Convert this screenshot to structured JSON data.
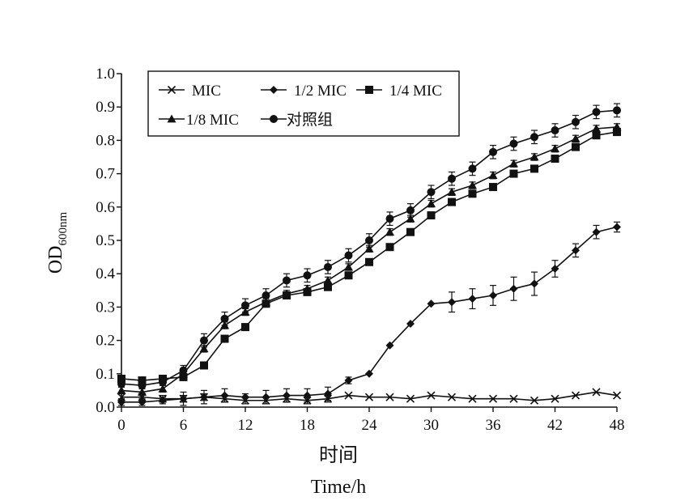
{
  "chart_data": {
    "type": "line",
    "xlabel": "时间",
    "xlabel_sub": "Time/h",
    "ylabel_main": "OD",
    "ylabel_sub": "600nm",
    "xlim": [
      0,
      48
    ],
    "ylim": [
      0.0,
      1.0
    ],
    "x_ticks": [
      "0",
      "6",
      "12",
      "18",
      "24",
      "30",
      "36",
      "42",
      "48"
    ],
    "y_ticks": [
      "0.0",
      "0.1",
      "0.2",
      "0.3",
      "0.4",
      "0.5",
      "0.6",
      "0.7",
      "0.8",
      "0.9",
      "1.0"
    ],
    "grid": false,
    "legend_position": "top-left",
    "x": [
      0,
      2,
      4,
      6,
      8,
      10,
      12,
      14,
      16,
      18,
      20,
      22,
      24,
      26,
      28,
      30,
      32,
      34,
      36,
      38,
      40,
      42,
      44,
      46,
      48
    ],
    "series": [
      {
        "name": "MIC",
        "marker": "x",
        "values": [
          0.03,
          0.03,
          0.025,
          0.025,
          0.03,
          0.025,
          0.02,
          0.02,
          0.025,
          0.02,
          0.025,
          0.035,
          0.03,
          0.03,
          0.025,
          0.035,
          0.03,
          0.025,
          0.025,
          0.025,
          0.02,
          0.025,
          0.035,
          0.045,
          0.035
        ],
        "errors": [
          0.01,
          0.01,
          0.01,
          0.01,
          0.01,
          0.01,
          0.01,
          0.01,
          0.01,
          0.01,
          0.01,
          0.0,
          0.0,
          0.0,
          0.0,
          0.0,
          0.0,
          0.0,
          0.0,
          0.0,
          0.0,
          0.0,
          0.0,
          0.0,
          0.0
        ]
      },
      {
        "name": "1/2 MIC",
        "marker": "diamond",
        "values": [
          0.015,
          0.015,
          0.02,
          0.025,
          0.03,
          0.035,
          0.03,
          0.03,
          0.035,
          0.035,
          0.04,
          0.08,
          0.1,
          0.185,
          0.25,
          0.31,
          0.315,
          0.325,
          0.335,
          0.355,
          0.37,
          0.415,
          0.47,
          0.525,
          0.54
        ],
        "errors": [
          0.01,
          0.01,
          0.01,
          0.02,
          0.02,
          0.02,
          0.01,
          0.02,
          0.02,
          0.02,
          0.02,
          0.01,
          0.0,
          0.0,
          0.0,
          0.0,
          0.03,
          0.03,
          0.03,
          0.035,
          0.035,
          0.025,
          0.02,
          0.02,
          0.015
        ]
      },
      {
        "name": "1/4 MIC",
        "marker": "square",
        "values": [
          0.085,
          0.08,
          0.085,
          0.09,
          0.125,
          0.205,
          0.24,
          0.31,
          0.335,
          0.345,
          0.36,
          0.395,
          0.435,
          0.48,
          0.525,
          0.575,
          0.615,
          0.64,
          0.66,
          0.7,
          0.715,
          0.745,
          0.78,
          0.815,
          0.825
        ],
        "errors": [
          0.01,
          0.01,
          0.01,
          0.01,
          0.01,
          0.01,
          0.01,
          0.01,
          0.01,
          0.01,
          0.01,
          0.01,
          0.01,
          0.01,
          0.01,
          0.01,
          0.01,
          0.01,
          0.01,
          0.01,
          0.01,
          0.01,
          0.01,
          0.01,
          0.01
        ]
      },
      {
        "name": "1/8 MIC",
        "marker": "triangle",
        "values": [
          0.05,
          0.045,
          0.055,
          0.1,
          0.175,
          0.245,
          0.285,
          0.315,
          0.34,
          0.355,
          0.38,
          0.42,
          0.475,
          0.525,
          0.565,
          0.61,
          0.645,
          0.665,
          0.695,
          0.73,
          0.75,
          0.775,
          0.805,
          0.835,
          0.84
        ],
        "errors": [
          0.01,
          0.01,
          0.01,
          0.01,
          0.01,
          0.01,
          0.01,
          0.01,
          0.01,
          0.01,
          0.01,
          0.01,
          0.01,
          0.01,
          0.01,
          0.01,
          0.01,
          0.01,
          0.01,
          0.01,
          0.01,
          0.01,
          0.01,
          0.01,
          0.01
        ]
      },
      {
        "name": "对照组",
        "marker": "circle",
        "values": [
          0.07,
          0.065,
          0.075,
          0.11,
          0.2,
          0.265,
          0.305,
          0.335,
          0.38,
          0.395,
          0.42,
          0.455,
          0.5,
          0.565,
          0.59,
          0.645,
          0.685,
          0.715,
          0.765,
          0.79,
          0.81,
          0.83,
          0.855,
          0.885,
          0.89
        ],
        "errors": [
          0.01,
          0.01,
          0.01,
          0.015,
          0.02,
          0.02,
          0.02,
          0.02,
          0.02,
          0.02,
          0.02,
          0.02,
          0.02,
          0.02,
          0.02,
          0.02,
          0.02,
          0.02,
          0.02,
          0.02,
          0.02,
          0.02,
          0.02,
          0.02,
          0.02
        ]
      }
    ]
  }
}
